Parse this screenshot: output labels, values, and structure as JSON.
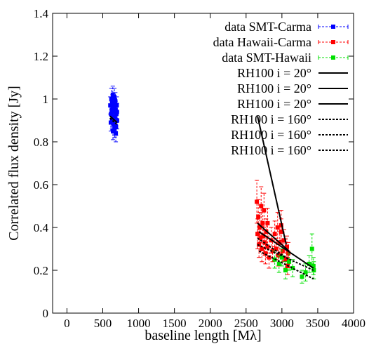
{
  "chart_data": {
    "type": "scatter",
    "xlabel": "baseline length [Mλ]",
    "ylabel": "Correlated flux density [Jy]",
    "xlim": [
      -200,
      4000
    ],
    "ylim": [
      0,
      1.4
    ],
    "xticks": [
      0,
      500,
      1000,
      1500,
      2000,
      2500,
      3000,
      3500,
      4000
    ],
    "yticks": [
      0,
      0.2,
      0.4,
      0.6,
      0.8,
      1,
      1.2,
      1.4
    ],
    "xtick_labels": [
      "0",
      "500",
      "1000",
      "1500",
      "2000",
      "2500",
      "3000",
      "3500",
      "4000"
    ],
    "ytick_labels": [
      "0",
      "0.2",
      "0.4",
      "0.6",
      "0.8",
      "1",
      "1.2",
      "1.4"
    ],
    "legend_position": "top-right",
    "series": [
      {
        "name": "data SMT-Carma",
        "style": "points-errorbars",
        "color": "#0000ff",
        "points": [
          [
            605,
            0.97,
            0.04
          ],
          [
            615,
            0.93,
            0.04
          ],
          [
            620,
            1.0,
            0.05
          ],
          [
            625,
            0.95,
            0.04
          ],
          [
            630,
            0.9,
            0.04
          ],
          [
            635,
            0.98,
            0.04
          ],
          [
            640,
            1.02,
            0.04
          ],
          [
            645,
            0.92,
            0.04
          ],
          [
            650,
            0.88,
            0.04
          ],
          [
            655,
            0.96,
            0.04
          ],
          [
            660,
            0.94,
            0.04
          ],
          [
            665,
            0.86,
            0.04
          ],
          [
            670,
            0.91,
            0.04
          ],
          [
            675,
            0.99,
            0.04
          ],
          [
            680,
            0.95,
            0.04
          ],
          [
            685,
            0.87,
            0.04
          ],
          [
            690,
            0.93,
            0.04
          ],
          [
            695,
            0.97,
            0.04
          ],
          [
            700,
            0.9,
            0.04
          ],
          [
            612,
            0.89,
            0.04
          ],
          [
            642,
            0.85,
            0.04
          ],
          [
            662,
            1.01,
            0.04
          ],
          [
            682,
            0.84,
            0.04
          ],
          [
            698,
            0.94,
            0.04
          ]
        ]
      },
      {
        "name": "data Hawaii-Carma",
        "style": "points-errorbars",
        "color": "#ff0000",
        "points": [
          [
            2650,
            0.52,
            0.1
          ],
          [
            2660,
            0.37,
            0.07
          ],
          [
            2670,
            0.45,
            0.08
          ],
          [
            2680,
            0.32,
            0.06
          ],
          [
            2690,
            0.4,
            0.07
          ],
          [
            2700,
            0.35,
            0.06
          ],
          [
            2710,
            0.5,
            0.09
          ],
          [
            2720,
            0.3,
            0.06
          ],
          [
            2730,
            0.42,
            0.07
          ],
          [
            2740,
            0.36,
            0.06
          ],
          [
            2750,
            0.48,
            0.08
          ],
          [
            2760,
            0.33,
            0.06
          ],
          [
            2770,
            0.28,
            0.05
          ],
          [
            2780,
            0.38,
            0.06
          ],
          [
            2800,
            0.31,
            0.05
          ],
          [
            2820,
            0.26,
            0.05
          ],
          [
            2850,
            0.34,
            0.06
          ],
          [
            2870,
            0.29,
            0.05
          ],
          [
            2900,
            0.37,
            0.06
          ],
          [
            2920,
            0.3,
            0.05
          ],
          [
            2940,
            0.4,
            0.07
          ],
          [
            2950,
            0.27,
            0.05
          ],
          [
            2970,
            0.33,
            0.05
          ],
          [
            2990,
            0.38,
            0.06
          ],
          [
            3010,
            0.29,
            0.05
          ],
          [
            3030,
            0.34,
            0.05
          ],
          [
            3050,
            0.25,
            0.04
          ],
          [
            3070,
            0.31,
            0.05
          ],
          [
            3080,
            0.22,
            0.04
          ],
          [
            3090,
            0.28,
            0.05
          ],
          [
            2800,
            0.42,
            0.07
          ],
          [
            2990,
            0.41,
            0.07
          ]
        ]
      },
      {
        "name": "data SMT-Hawaii",
        "style": "points-errorbars",
        "color": "#00e000",
        "points": [
          [
            2900,
            0.25,
            0.04
          ],
          [
            2960,
            0.23,
            0.04
          ],
          [
            3000,
            0.26,
            0.04
          ],
          [
            3050,
            0.2,
            0.04
          ],
          [
            3100,
            0.24,
            0.04
          ],
          [
            3150,
            0.21,
            0.04
          ],
          [
            3280,
            0.17,
            0.03
          ],
          [
            3330,
            0.19,
            0.04
          ],
          [
            3380,
            0.23,
            0.04
          ],
          [
            3420,
            0.3,
            0.07
          ],
          [
            3440,
            0.22,
            0.04
          ],
          [
            3445,
            0.2,
            0.04
          ]
        ]
      },
      {
        "name": "RH100 i = 20°",
        "style": "solid",
        "color": "#000000",
        "points": [
          [
            2660,
            0.92
          ],
          [
            3060,
            0.32
          ]
        ],
        "extra_segments": [
          [
            [
              600,
              0.92
            ],
            [
              700,
              0.89
            ]
          ]
        ]
      },
      {
        "name": "RH100 i = 20°",
        "style": "solid",
        "color": "#000000",
        "points": [
          [
            2660,
            0.42
          ],
          [
            3100,
            0.29
          ]
        ]
      },
      {
        "name": "RH100 i = 20°",
        "style": "solid",
        "color": "#000000",
        "points": [
          [
            2680,
            0.38
          ],
          [
            3440,
            0.21
          ]
        ]
      },
      {
        "name": "RH100 i = 160°",
        "style": "dotted",
        "color": "#000000",
        "points": [
          [
            2660,
            0.35
          ],
          [
            3100,
            0.25
          ]
        ],
        "extra_segments": [
          [
            [
              600,
              0.91
            ],
            [
              700,
              0.88
            ]
          ]
        ]
      },
      {
        "name": "RH100 i = 160°",
        "style": "dotted",
        "color": "#000000",
        "points": [
          [
            2660,
            0.32
          ],
          [
            3440,
            0.2
          ]
        ]
      },
      {
        "name": "RH100 i = 160°",
        "style": "dotted",
        "color": "#000000",
        "points": [
          [
            2680,
            0.29
          ],
          [
            3440,
            0.16
          ]
        ]
      }
    ]
  }
}
